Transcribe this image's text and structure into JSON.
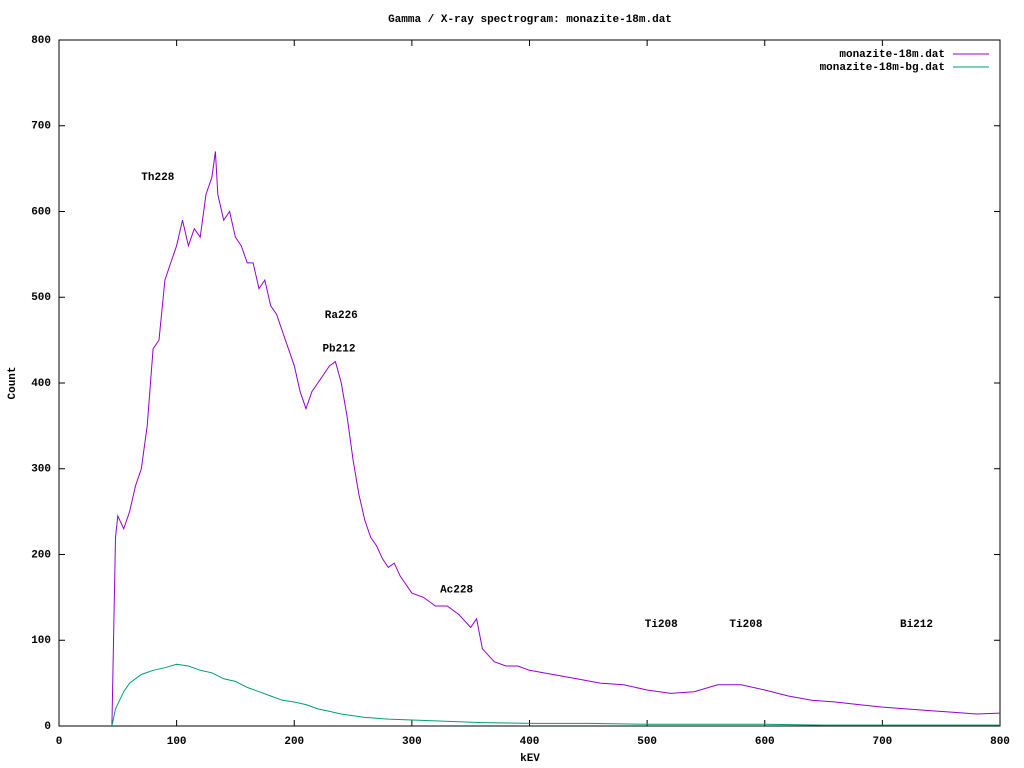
{
  "chart_data": {
    "type": "line",
    "title": "Gamma / X-ray spectrogram: monazite-18m.dat",
    "x_label": "kEV",
    "y_label": "Count",
    "xlim": [
      0,
      800
    ],
    "ylim": [
      0,
      800
    ],
    "xticks": [
      0,
      100,
      200,
      300,
      400,
      500,
      600,
      700,
      800
    ],
    "yticks": [
      0,
      100,
      200,
      300,
      400,
      500,
      600,
      700,
      800
    ],
    "legend": "top-right",
    "series": [
      {
        "name": "monazite-18m.dat",
        "color": "#9400d3",
        "x": [
          45,
          48,
          50,
          55,
          60,
          65,
          70,
          75,
          80,
          85,
          90,
          95,
          100,
          105,
          110,
          115,
          120,
          125,
          130,
          133,
          135,
          140,
          145,
          150,
          155,
          160,
          165,
          170,
          175,
          180,
          185,
          190,
          195,
          200,
          205,
          210,
          215,
          220,
          225,
          230,
          235,
          240,
          245,
          250,
          255,
          260,
          265,
          270,
          275,
          280,
          285,
          290,
          295,
          300,
          310,
          320,
          330,
          340,
          350,
          355,
          360,
          370,
          380,
          390,
          400,
          420,
          440,
          460,
          480,
          500,
          520,
          540,
          560,
          580,
          600,
          620,
          640,
          660,
          680,
          700,
          720,
          740,
          760,
          780,
          800
        ],
        "values": [
          0,
          220,
          245,
          230,
          250,
          280,
          300,
          350,
          440,
          450,
          520,
          540,
          560,
          590,
          560,
          580,
          570,
          620,
          640,
          670,
          620,
          590,
          600,
          570,
          560,
          540,
          540,
          510,
          520,
          490,
          480,
          460,
          440,
          420,
          390,
          370,
          390,
          400,
          410,
          420,
          425,
          400,
          360,
          310,
          270,
          240,
          220,
          210,
          195,
          185,
          190,
          175,
          165,
          155,
          150,
          140,
          140,
          130,
          115,
          125,
          90,
          75,
          70,
          70,
          65,
          60,
          55,
          50,
          48,
          42,
          38,
          40,
          48,
          48,
          42,
          35,
          30,
          28,
          25,
          22,
          20,
          18,
          16,
          14,
          15
        ]
      },
      {
        "name": "monazite-18m-bg.dat",
        "color": "#009e73",
        "x": [
          45,
          48,
          55,
          60,
          70,
          80,
          90,
          100,
          110,
          120,
          130,
          140,
          150,
          160,
          170,
          180,
          190,
          200,
          210,
          220,
          230,
          240,
          250,
          260,
          280,
          300,
          320,
          340,
          360,
          400,
          450,
          500,
          550,
          600,
          650,
          700,
          800
        ],
        "values": [
          0,
          20,
          40,
          50,
          60,
          65,
          68,
          72,
          70,
          65,
          62,
          55,
          52,
          45,
          40,
          35,
          30,
          28,
          25,
          20,
          17,
          14,
          12,
          10,
          8,
          7,
          6,
          5,
          4,
          3,
          3,
          2,
          2,
          2,
          1,
          1,
          1
        ]
      }
    ],
    "annotations": [
      {
        "text": "Th228",
        "x": 84,
        "y": 640
      },
      {
        "text": "Ra226",
        "x": 240,
        "y": 479
      },
      {
        "text": "Pb212",
        "x": 238,
        "y": 440
      },
      {
        "text": "Ac228",
        "x": 338,
        "y": 159
      },
      {
        "text": "Ti208",
        "x": 512,
        "y": 119
      },
      {
        "text": "Ti208",
        "x": 584,
        "y": 119
      },
      {
        "text": "Bi212",
        "x": 729,
        "y": 119
      }
    ]
  }
}
